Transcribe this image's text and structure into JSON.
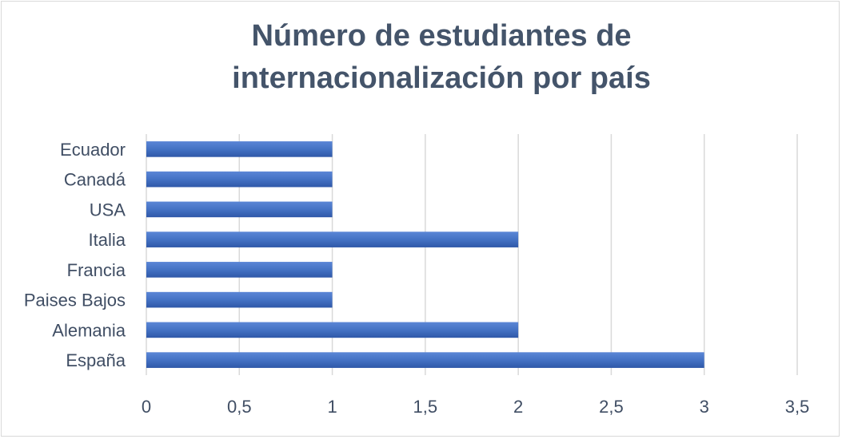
{
  "chart_data": {
    "type": "bar",
    "orientation": "horizontal",
    "title_lines": [
      "Número de estudiantes de",
      "internacionalización por país"
    ],
    "categories": [
      "Ecuador",
      "Canadá",
      "USA",
      "Italia",
      "Francia",
      "Paises Bajos",
      "Alemania",
      "España"
    ],
    "values": [
      1,
      1,
      1,
      2,
      1,
      1,
      2,
      3
    ],
    "xlim": [
      0,
      3.5
    ],
    "x_ticks": [
      "0",
      "0,5",
      "1",
      "1,5",
      "2",
      "2,5",
      "3",
      "3,5"
    ],
    "grid": "vertical",
    "legend": "none",
    "bar_color": "#4472c4"
  }
}
